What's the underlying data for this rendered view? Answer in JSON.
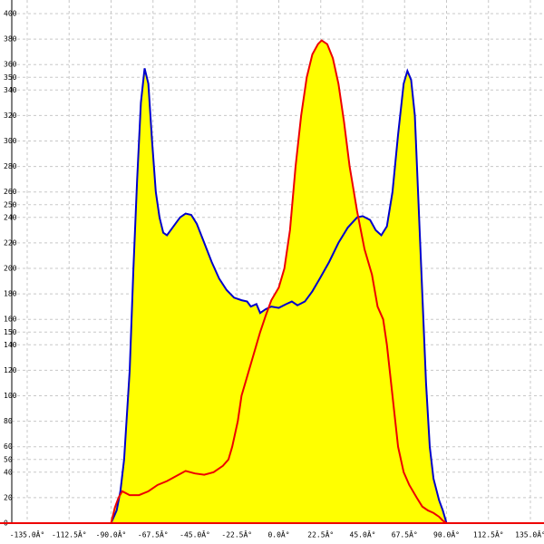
{
  "chart_data": {
    "type": "area",
    "xlim": [
      -135,
      135
    ],
    "xticks": [
      {
        "value": -135,
        "label": "-135.0Â°"
      },
      {
        "value": -112.5,
        "label": "-112.5Â°"
      },
      {
        "value": -90,
        "label": "-90.0Â°"
      },
      {
        "value": -67.5,
        "label": "-67.5Â°"
      },
      {
        "value": -45,
        "label": "-45.0Â°"
      },
      {
        "value": -22.5,
        "label": "-22.5Â°"
      },
      {
        "value": 0,
        "label": "0.0Â°"
      },
      {
        "value": 22.5,
        "label": "22.5Â°"
      },
      {
        "value": 45,
        "label": "45.0Â°"
      },
      {
        "value": 67.5,
        "label": "67.5Â°"
      },
      {
        "value": 90,
        "label": "90.0Â°"
      },
      {
        "value": 112.5,
        "label": "112.5Â°"
      },
      {
        "value": 135,
        "label": "135.0Â°"
      }
    ],
    "ylim": [
      0,
      400
    ],
    "yticks": [
      0,
      20,
      40,
      50,
      60,
      80,
      100,
      120,
      140,
      150,
      160,
      180,
      200,
      220,
      240,
      250,
      260,
      280,
      300,
      320,
      340,
      350,
      360,
      380,
      400
    ],
    "grid": true,
    "fill_color": "#ffff00",
    "series": [
      {
        "color": "#0000cc",
        "x": [
          -90,
          -87,
          -85,
          -83,
          -80,
          -78,
          -76,
          -74,
          -72,
          -70,
          -68,
          -66,
          -64,
          -62,
          -60,
          -57,
          -53,
          -50,
          -47,
          -44,
          -40,
          -36,
          -32,
          -28,
          -24,
          -20,
          -17,
          -15,
          -12,
          -10,
          -7,
          -4,
          0,
          4,
          7,
          10,
          14,
          18,
          22,
          27,
          32,
          37,
          42,
          45,
          49,
          52,
          55,
          58,
          61,
          64,
          67,
          69,
          71,
          73,
          75,
          77,
          79,
          81,
          83,
          86,
          88,
          90
        ],
        "values": [
          0,
          10,
          25,
          50,
          120,
          200,
          270,
          330,
          357,
          345,
          300,
          260,
          240,
          228,
          226,
          232,
          240,
          243,
          242,
          235,
          220,
          205,
          192,
          183,
          177,
          175,
          174,
          170,
          172,
          165,
          168,
          170,
          169,
          172,
          174,
          171,
          174,
          182,
          192,
          205,
          220,
          232,
          240,
          241,
          238,
          230,
          226,
          233,
          260,
          305,
          345,
          355,
          348,
          320,
          250,
          180,
          110,
          60,
          35,
          18,
          10,
          0
        ]
      },
      {
        "color": "#ee0000",
        "x": [
          -90,
          -88,
          -86,
          -84,
          -80,
          -75,
          -70,
          -65,
          -60,
          -55,
          -50,
          -45,
          -40,
          -35,
          -30,
          -27,
          -25,
          -22,
          -20,
          -17,
          -14,
          -10,
          -7,
          -4,
          0,
          3,
          6,
          9,
          12,
          15,
          18,
          21,
          23,
          26,
          29,
          32,
          35,
          38,
          42,
          46,
          50,
          53,
          56,
          58,
          61,
          64,
          67,
          70,
          74,
          77,
          80,
          83,
          86,
          88,
          90
        ],
        "values": [
          0,
          12,
          20,
          25,
          22,
          22,
          25,
          30,
          33,
          37,
          41,
          39,
          38,
          40,
          45,
          50,
          60,
          80,
          100,
          115,
          130,
          150,
          163,
          175,
          185,
          200,
          230,
          280,
          320,
          350,
          368,
          376,
          379,
          376,
          365,
          345,
          315,
          280,
          245,
          215,
          195,
          170,
          160,
          140,
          100,
          60,
          40,
          30,
          20,
          13,
          10,
          8,
          5,
          2,
          0
        ]
      }
    ]
  }
}
